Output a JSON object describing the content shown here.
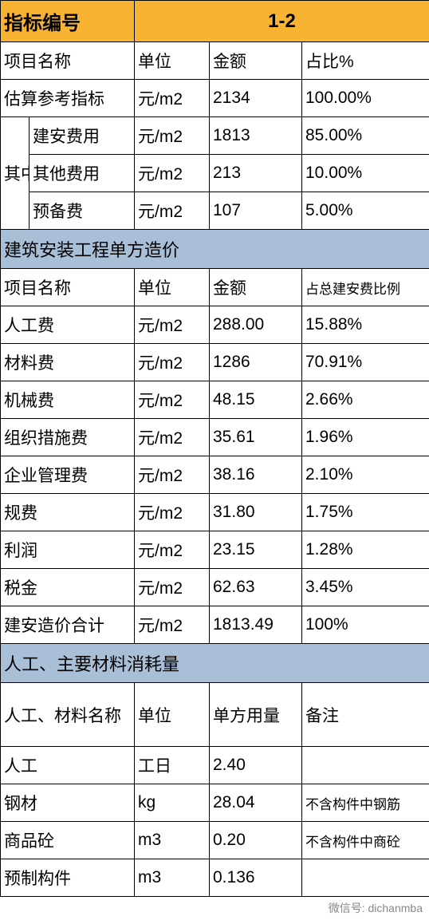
{
  "colors": {
    "header_bg": "#f9b333",
    "section_bg": "#a9bfd7",
    "border": "#000000",
    "text": "#000000"
  },
  "header": {
    "label": "指标编号",
    "value": "1-2"
  },
  "section1": {
    "cols": [
      "项目名称",
      "单位",
      "金额",
      "占比%"
    ],
    "ref_row": {
      "name": "估算参考指标",
      "unit": "元/m2",
      "amount": "2134",
      "ratio": "100.00%"
    },
    "group_label": "其中",
    "rows": [
      {
        "name": "建安费用",
        "unit": "元/m2",
        "amount": "1813",
        "ratio": "85.00%"
      },
      {
        "name": "其他费用",
        "unit": "元/m2",
        "amount": "213",
        "ratio": "10.00%"
      },
      {
        "name": "预备费",
        "unit": "元/m2",
        "amount": "107",
        "ratio": "5.00%"
      }
    ]
  },
  "section2": {
    "title": "建筑安装工程单方造价",
    "cols": [
      "项目名称",
      "单位",
      "金额",
      "占总建安费比例"
    ],
    "rows": [
      {
        "name": "人工费",
        "unit": "元/m2",
        "amount": "288.00",
        "ratio": "15.88%"
      },
      {
        "name": "材料费",
        "unit": "元/m2",
        "amount": "1286",
        "ratio": "70.91%"
      },
      {
        "name": "机械费",
        "unit": "元/m2",
        "amount": "48.15",
        "ratio": "2.66%"
      },
      {
        "name": "组织措施费",
        "unit": "元/m2",
        "amount": "35.61",
        "ratio": "1.96%"
      },
      {
        "name": "企业管理费",
        "unit": "元/m2",
        "amount": "38.16",
        "ratio": "2.10%"
      },
      {
        "name": "规费",
        "unit": "元/m2",
        "amount": "31.80",
        "ratio": "1.75%"
      },
      {
        "name": "利润",
        "unit": "元/m2",
        "amount": "23.15",
        "ratio": "1.28%"
      },
      {
        "name": "税金",
        "unit": "元/m2",
        "amount": "62.63",
        "ratio": "3.45%"
      },
      {
        "name": "建安造价合计",
        "unit": "元/m2",
        "amount": "1813.49",
        "ratio": "100%"
      }
    ]
  },
  "section3": {
    "title": "人工、主要材料消耗量",
    "cols": [
      "人工、材料名称",
      "单位",
      "单方用量",
      "备注"
    ],
    "rows": [
      {
        "name": "人工",
        "unit": "工日",
        "amount": "2.40",
        "note": ""
      },
      {
        "name": "钢材",
        "unit": "kg",
        "amount": "28.04",
        "note": "不含构件中钢筋"
      },
      {
        "name": "商品砼",
        "unit": "m3",
        "amount": "0.20",
        "note": "不含构件中商砼"
      },
      {
        "name": "预制构件",
        "unit": "m3",
        "amount": "0.136",
        "note": ""
      }
    ]
  },
  "footer": "微信号: dichanmba"
}
